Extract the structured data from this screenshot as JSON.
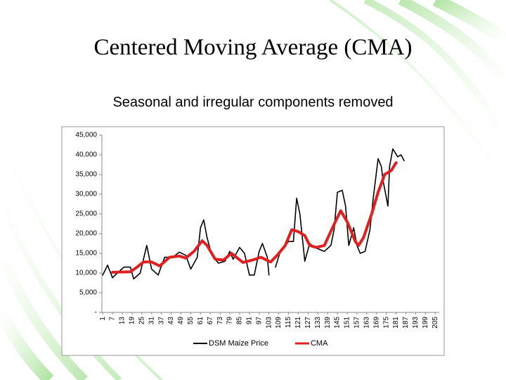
{
  "chart_data": {
    "type": "line",
    "title": "Centered Moving Average (CMA)",
    "subtitle": "Seasonal and irregular components removed",
    "xlim": [
      0.5,
      207.5
    ],
    "xticks": [
      1,
      7,
      13,
      19,
      25,
      31,
      37,
      43,
      49,
      55,
      61,
      67,
      73,
      79,
      85,
      91,
      97,
      103,
      109,
      115,
      121,
      127,
      133,
      139,
      145,
      151,
      157,
      163,
      169,
      175,
      181,
      187,
      193,
      199,
      205
    ],
    "ylim": [
      0,
      45000
    ],
    "yticks": [
      {
        "value": 0,
        "label": "-"
      },
      {
        "value": 5000,
        "label": "5,000"
      },
      {
        "value": 10000,
        "label": "10,000"
      },
      {
        "value": 15000,
        "label": "15,000"
      },
      {
        "value": 20000,
        "label": "20,000"
      },
      {
        "value": 25000,
        "label": "25,000"
      },
      {
        "value": 30000,
        "label": "30,000"
      },
      {
        "value": 35000,
        "label": "35,000"
      },
      {
        "value": 40000,
        "label": "40,000"
      },
      {
        "value": 45000,
        "label": "45,000"
      }
    ],
    "grid": false,
    "series": [
      {
        "name": "DSM Maize Price",
        "color": "#000000",
        "x": [
          1,
          4,
          7,
          10,
          14,
          18,
          20,
          24,
          28,
          31,
          35,
          39,
          44,
          48,
          52,
          55,
          59,
          61,
          63,
          65,
          68,
          72,
          76,
          79,
          81,
          85,
          88,
          91,
          94,
          97,
          99,
          102,
          103,
          104,
          107,
          110,
          115,
          118,
          120,
          122,
          125,
          128,
          131,
          134,
          137,
          141,
          143,
          145,
          148,
          150,
          152,
          155,
          157,
          159,
          162,
          165,
          167,
          170,
          172,
          173,
          176,
          177,
          179,
          182,
          184,
          186
        ],
        "values": [
          9500,
          12000,
          8800,
          10000,
          11500,
          11500,
          8500,
          10000,
          17000,
          11000,
          9500,
          14000,
          14000,
          15300,
          14500,
          11000,
          14000,
          21500,
          23500,
          19000,
          14500,
          12500,
          13000,
          15500,
          13500,
          16500,
          15000,
          9500,
          9500,
          15500,
          17500,
          14000,
          9500,
          null,
          11500,
          15500,
          18000,
          18000,
          29000,
          25000,
          13000,
          17500,
          16500,
          16000,
          15500,
          17000,
          21000,
          30500,
          31000,
          27000,
          17000,
          21500,
          17000,
          15000,
          15500,
          21000,
          29000,
          39000,
          37000,
          33500,
          27000,
          37000,
          41500,
          39500,
          40000,
          38500
        ]
      },
      {
        "name": "CMA",
        "color": "#e02020",
        "x": [
          7,
          18,
          22,
          26,
          31,
          36,
          42,
          48,
          52,
          57,
          62,
          65,
          70,
          75,
          80,
          87,
          93,
          98,
          104,
          108,
          113,
          117,
          121,
          125,
          128,
          132,
          137,
          142,
          147,
          151,
          156,
          158,
          161,
          166,
          170,
          174,
          178,
          181
        ],
        "values": [
          10200,
          10300,
          11500,
          12800,
          12800,
          11800,
          14000,
          14300,
          13800,
          15500,
          18200,
          17000,
          13500,
          13300,
          15000,
          12700,
          13300,
          14000,
          12800,
          14500,
          17000,
          21000,
          20500,
          19500,
          17000,
          16500,
          17000,
          21500,
          25800,
          23000,
          18000,
          17000,
          19000,
          25000,
          30500,
          35000,
          36000,
          38000
        ]
      }
    ]
  }
}
